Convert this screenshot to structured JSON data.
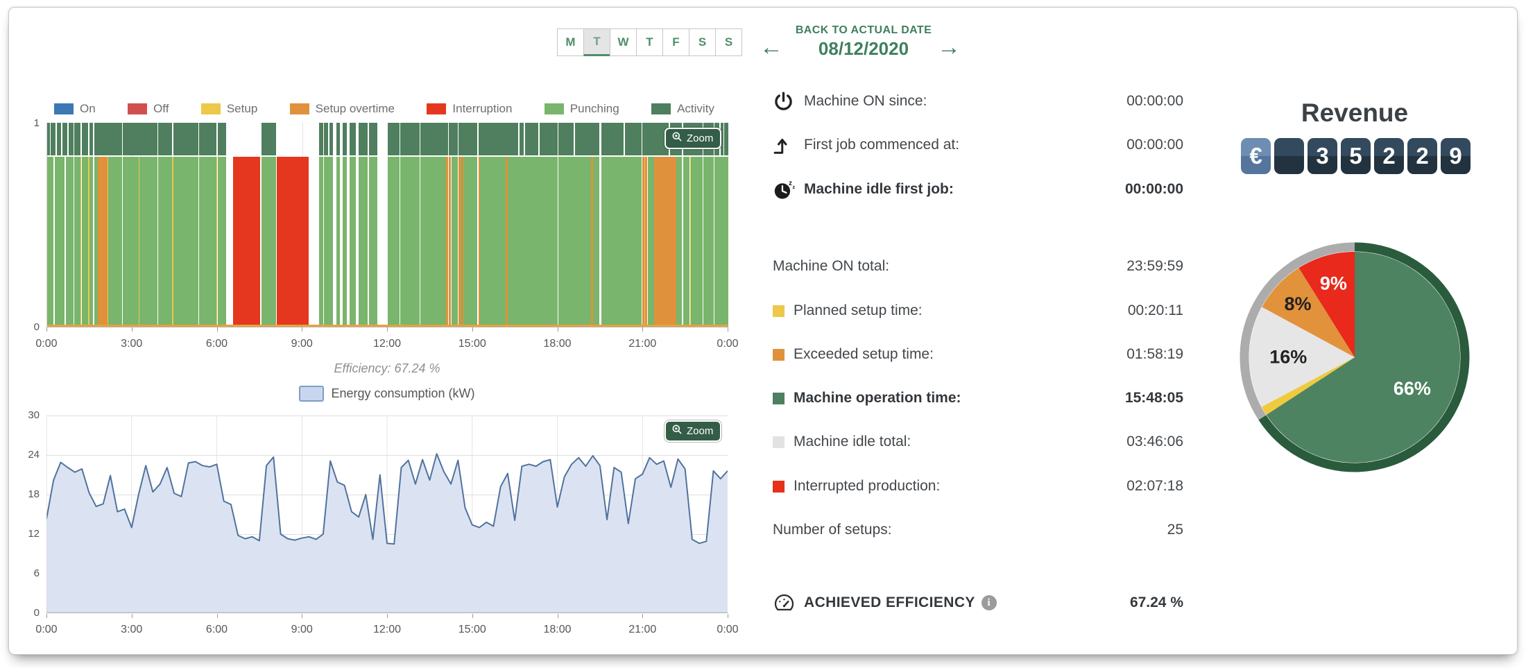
{
  "header": {
    "days": [
      "M",
      "T",
      "W",
      "T",
      "F",
      "S",
      "S"
    ],
    "selected_day_index": 1,
    "back_label": "BACK TO ACTUAL DATE",
    "date": "08/12/2020",
    "prev_arrow": "←",
    "next_arrow": "→"
  },
  "ui": {
    "zoom_label": "Zoom"
  },
  "stats": {
    "rows": [
      {
        "icon": "power-icon",
        "label": "Machine ON since:",
        "value": "00:00:00",
        "bold": false
      },
      {
        "icon": "first-job-icon",
        "label": "First job commenced at:",
        "value": "00:00:00",
        "bold": false
      },
      {
        "icon": "sleep-clock-icon",
        "label": "Machine idle first job:",
        "value": "00:00:00",
        "bold": true
      },
      {
        "swatch": null,
        "label": "Machine ON total:",
        "value": "23:59:59",
        "bold": false
      },
      {
        "swatch": "#edc84a",
        "label": "Planned setup time:",
        "value": "00:20:11",
        "bold": false
      },
      {
        "swatch": "#df923b",
        "label": "Exceeded setup time:",
        "value": "01:58:19",
        "bold": false
      },
      {
        "swatch": "#4d8060",
        "label": "Machine operation time:",
        "value": "15:48:05",
        "bold": true
      },
      {
        "swatch": "#e2e2e2",
        "label": "Machine idle total:",
        "value": "03:46:06",
        "bold": false
      },
      {
        "swatch": "#e5301c",
        "label": "Interrupted production:",
        "value": "02:07:18",
        "bold": false
      },
      {
        "swatch": null,
        "label": "Number of setups:",
        "value": "25",
        "bold": false
      },
      {
        "icon": "gauge-icon",
        "label": "ACHIEVED EFFICIENCY",
        "value": "67.24 %",
        "bold": true,
        "info": true
      }
    ]
  },
  "revenue": {
    "title": "Revenue",
    "currency": "€",
    "digits": [
      "",
      "3",
      "5",
      "2",
      "2",
      "9"
    ]
  },
  "chart_data": [
    {
      "id": "machine-state-timeline",
      "type": "timeline",
      "caption": "Efficiency: 67.24 %",
      "x_ticks": [
        "0:00",
        "3:00",
        "6:00",
        "9:00",
        "12:00",
        "15:00",
        "18:00",
        "21:00",
        "0:00"
      ],
      "y_ticks": [
        "1",
        "0"
      ],
      "xlim_hours": [
        0,
        24
      ],
      "legend": [
        {
          "label": "On",
          "color": "#3c78b4"
        },
        {
          "label": "Off",
          "color": "#d05050"
        },
        {
          "label": "Setup",
          "color": "#edc84a"
        },
        {
          "label": "Setup overtime",
          "color": "#df923b"
        },
        {
          "label": "Interruption",
          "color": "#e5371f"
        },
        {
          "label": "Punching",
          "color": "#79b56c"
        },
        {
          "label": "Activity",
          "color": "#4f7f5e"
        }
      ],
      "state_colors": {
        "p": "#79b56c",
        "y": "#edc84a",
        "o": "#df923b",
        "r": "#e5371f"
      },
      "activity_color": "#4f7f5e",
      "baseline_color": "#e5a43c",
      "segments": [
        [
          0,
          0.22,
          "p"
        ],
        [
          0.22,
          0.26,
          "i"
        ],
        [
          0.26,
          0.62,
          "p"
        ],
        [
          0.62,
          0.66,
          "i"
        ],
        [
          0.66,
          0.93,
          "p"
        ],
        [
          0.93,
          0.96,
          "i"
        ],
        [
          0.96,
          1.17,
          "p"
        ],
        [
          1.17,
          1.21,
          "y"
        ],
        [
          1.21,
          1.45,
          "p"
        ],
        [
          1.45,
          1.49,
          "y"
        ],
        [
          1.49,
          1.62,
          "p"
        ],
        [
          1.62,
          1.65,
          "i"
        ],
        [
          1.65,
          1.78,
          "p"
        ],
        [
          1.78,
          2.12,
          "o"
        ],
        [
          2.12,
          2.16,
          "y"
        ],
        [
          2.16,
          2.64,
          "p"
        ],
        [
          2.64,
          2.67,
          "i"
        ],
        [
          2.67,
          3.22,
          "p"
        ],
        [
          3.22,
          3.26,
          "y"
        ],
        [
          3.26,
          3.88,
          "p"
        ],
        [
          3.88,
          3.92,
          "i"
        ],
        [
          3.92,
          4.41,
          "p"
        ],
        [
          4.41,
          4.45,
          "y"
        ],
        [
          4.45,
          5.32,
          "p"
        ],
        [
          5.32,
          5.35,
          "i"
        ],
        [
          5.35,
          5.96,
          "p"
        ],
        [
          5.96,
          6.0,
          "y"
        ],
        [
          6.0,
          6.31,
          "p"
        ],
        [
          6.31,
          6.56,
          "i"
        ],
        [
          6.56,
          7.51,
          "r"
        ],
        [
          7.51,
          7.54,
          "i"
        ],
        [
          7.54,
          8.06,
          "p"
        ],
        [
          8.06,
          8.1,
          "i"
        ],
        [
          8.1,
          9.21,
          "r"
        ],
        [
          9.21,
          9.58,
          "i"
        ],
        [
          9.58,
          9.72,
          "p"
        ],
        [
          9.72,
          9.75,
          "i"
        ],
        [
          9.75,
          10.08,
          "p"
        ],
        [
          10.08,
          10.18,
          "i"
        ],
        [
          10.18,
          10.32,
          "p"
        ],
        [
          10.32,
          10.42,
          "i"
        ],
        [
          10.42,
          10.57,
          "p"
        ],
        [
          10.57,
          10.66,
          "i"
        ],
        [
          10.66,
          10.88,
          "p"
        ],
        [
          10.88,
          10.98,
          "i"
        ],
        [
          10.98,
          11.28,
          "p"
        ],
        [
          11.28,
          11.33,
          "i"
        ],
        [
          11.33,
          11.63,
          "p"
        ],
        [
          11.63,
          12.01,
          "i"
        ],
        [
          12.01,
          12.42,
          "p"
        ],
        [
          12.42,
          12.45,
          "i"
        ],
        [
          12.45,
          13.12,
          "p"
        ],
        [
          13.12,
          13.15,
          "i"
        ],
        [
          13.15,
          14.06,
          "p"
        ],
        [
          14.06,
          14.13,
          "o"
        ],
        [
          14.13,
          14.16,
          "i"
        ],
        [
          14.16,
          14.23,
          "o"
        ],
        [
          14.23,
          14.26,
          "i"
        ],
        [
          14.26,
          14.46,
          "p"
        ],
        [
          14.46,
          14.5,
          "i"
        ],
        [
          14.5,
          14.58,
          "o"
        ],
        [
          14.58,
          14.64,
          "p"
        ],
        [
          14.64,
          14.7,
          "o"
        ],
        [
          14.7,
          15.16,
          "p"
        ],
        [
          15.16,
          15.19,
          "i"
        ],
        [
          15.19,
          15.26,
          "o"
        ],
        [
          15.26,
          16.16,
          "p"
        ],
        [
          16.16,
          16.24,
          "o"
        ],
        [
          16.24,
          17.98,
          "p"
        ],
        [
          17.98,
          18.01,
          "i"
        ],
        [
          18.01,
          19.16,
          "p"
        ],
        [
          19.16,
          19.24,
          "o"
        ],
        [
          19.24,
          19.46,
          "p"
        ],
        [
          19.46,
          19.52,
          "i"
        ],
        [
          19.52,
          20.94,
          "p"
        ],
        [
          20.94,
          20.98,
          "i"
        ],
        [
          20.98,
          21.04,
          "o"
        ],
        [
          21.04,
          21.07,
          "y"
        ],
        [
          21.07,
          21.13,
          "o"
        ],
        [
          21.13,
          21.16,
          "i"
        ],
        [
          21.16,
          21.38,
          "p"
        ],
        [
          21.38,
          22.16,
          "o"
        ],
        [
          22.16,
          22.36,
          "p"
        ],
        [
          22.36,
          22.4,
          "i"
        ],
        [
          22.4,
          22.62,
          "p"
        ],
        [
          22.62,
          22.65,
          "i"
        ],
        [
          22.65,
          22.68,
          "y"
        ],
        [
          22.68,
          23.1,
          "p"
        ],
        [
          23.1,
          23.13,
          "i"
        ],
        [
          23.13,
          23.48,
          "p"
        ],
        [
          23.48,
          23.51,
          "i"
        ],
        [
          23.51,
          24,
          "p"
        ]
      ],
      "activity_band": [
        [
          0,
          0.1
        ],
        [
          0.13,
          0.3
        ],
        [
          0.33,
          0.5
        ],
        [
          0.53,
          0.72
        ],
        [
          0.76,
          0.93
        ],
        [
          0.96,
          1.17
        ],
        [
          1.21,
          1.45
        ],
        [
          1.49,
          1.62
        ],
        [
          1.65,
          2.64
        ],
        [
          2.67,
          3.88
        ],
        [
          3.92,
          4.41
        ],
        [
          4.45,
          5.32
        ],
        [
          5.35,
          5.96
        ],
        [
          6.0,
          6.31
        ],
        [
          7.54,
          8.06
        ],
        [
          9.58,
          9.72
        ],
        [
          9.75,
          9.9
        ],
        [
          9.95,
          10.08
        ],
        [
          10.18,
          10.32
        ],
        [
          10.42,
          10.57
        ],
        [
          10.66,
          10.88
        ],
        [
          10.98,
          11.28
        ],
        [
          11.33,
          11.63
        ],
        [
          12.01,
          12.42
        ],
        [
          12.45,
          13.12
        ],
        [
          13.15,
          14.13
        ],
        [
          14.16,
          14.46
        ],
        [
          14.5,
          15.16
        ],
        [
          15.19,
          16.6
        ],
        [
          16.65,
          16.8
        ],
        [
          16.85,
          17.3
        ],
        [
          17.35,
          17.98
        ],
        [
          18.01,
          18.55
        ],
        [
          18.6,
          19.46
        ],
        [
          19.52,
          20.3
        ],
        [
          20.35,
          20.94
        ],
        [
          20.98,
          21.9
        ],
        [
          21.95,
          22.36
        ],
        [
          22.4,
          23.1
        ],
        [
          23.13,
          23.48
        ],
        [
          23.51,
          23.68
        ],
        [
          23.72,
          23.82
        ],
        [
          23.86,
          24
        ]
      ]
    },
    {
      "id": "energy-consumption",
      "type": "area",
      "legend_label": "Energy consumption (kW)",
      "ylim": [
        0,
        30
      ],
      "y_ticks": [
        30,
        24,
        18,
        12,
        6,
        0
      ],
      "x_ticks": [
        "0:00",
        "3:00",
        "6:00",
        "9:00",
        "12:00",
        "15:00",
        "18:00",
        "21:00",
        "0:00"
      ],
      "x_start_hour": 0,
      "x_step_hours": 0.25,
      "line_color": "#51729e",
      "fill_color": "#dbe3f2",
      "values": [
        14.3,
        20.2,
        22.9,
        22.1,
        21.4,
        21.9,
        18.3,
        16.2,
        16.6,
        20.9,
        15.4,
        15.8,
        13.0,
        18.1,
        22.4,
        18.4,
        19.6,
        22.1,
        18.2,
        17.7,
        22.8,
        23.0,
        22.4,
        22.2,
        22.6,
        17.0,
        16.5,
        11.8,
        11.3,
        11.6,
        11.0,
        22.4,
        23.7,
        12.0,
        11.3,
        11.1,
        11.4,
        11.6,
        11.2,
        12.0,
        23.1,
        19.9,
        19.4,
        15.4,
        14.6,
        18.0,
        11.2,
        21.0,
        10.6,
        10.5,
        22.1,
        23.2,
        19.6,
        23.3,
        20.2,
        24.2,
        21.5,
        19.6,
        23.2,
        16.0,
        13.4,
        13.0,
        13.8,
        13.2,
        19.2,
        21.2,
        14.1,
        22.3,
        22.6,
        22.3,
        23.0,
        23.3,
        16.1,
        20.7,
        22.6,
        23.6,
        22.3,
        23.9,
        22.4,
        14.2,
        22.1,
        21.4,
        13.6,
        20.4,
        21.1,
        23.6,
        22.6,
        23.1,
        19.1,
        23.4,
        21.9,
        11.2,
        10.6,
        10.9,
        21.6,
        20.4,
        21.6
      ]
    },
    {
      "id": "revenue-breakdown",
      "type": "pie",
      "start_at_top": true,
      "clockwise": true,
      "slices": [
        {
          "label": "66%",
          "value": 65.8,
          "color": "#4e8361",
          "label_color": "#ffffff",
          "label_r": 0.62
        },
        {
          "label": "",
          "value": 1.4,
          "color": "#f0ca3e",
          "label_color": "#222222",
          "label_r": 0.8
        },
        {
          "label": "16%",
          "value": 15.7,
          "color": "#e6e6e6",
          "label_color": "#222222",
          "label_r": 0.63
        },
        {
          "label": "8%",
          "value": 8.2,
          "color": "#e2923a",
          "label_color": "#222222",
          "label_r": 0.74
        },
        {
          "label": "9%",
          "value": 8.9,
          "color": "#e8291c",
          "label_color": "#ffffff",
          "label_r": 0.73
        }
      ],
      "ring": [
        {
          "color": "#2a5b3d",
          "value": 65.8
        },
        {
          "color": "#acacac",
          "value": 34.2
        }
      ]
    }
  ]
}
